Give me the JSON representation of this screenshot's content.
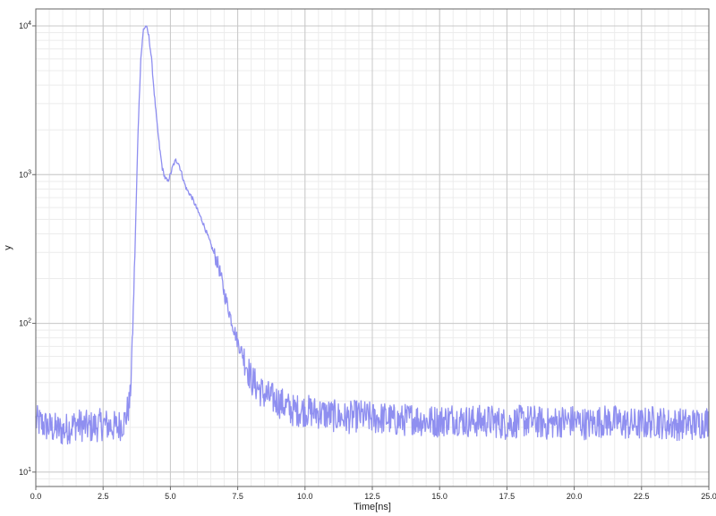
{
  "chart_data": {
    "type": "line",
    "title": "",
    "xlabel": "Time[ns]",
    "ylabel": "y",
    "xlim": [
      0,
      25
    ],
    "ylim": [
      8,
      13000
    ],
    "yscale": "log",
    "grid": true,
    "legend": "none",
    "x_ticks": [
      "0.0",
      "2.5",
      "5.0",
      "7.5",
      "10.0",
      "12.5",
      "15.0",
      "17.5",
      "20.0",
      "22.5",
      "25.0"
    ],
    "y_ticks": [
      {
        "base": "10",
        "exp": "1",
        "value": 10
      },
      {
        "base": "10",
        "exp": "2",
        "value": 100
      },
      {
        "base": "10",
        "exp": "3",
        "value": 1000
      },
      {
        "base": "10",
        "exp": "4",
        "value": 10000
      }
    ],
    "colors": {
      "series": "#8f8ff0",
      "grid_major": "#c8c8c8",
      "grid_minor": "#ececec",
      "frame": "#666666"
    },
    "series": [
      {
        "x": [
          0.0,
          0.5,
          1.0,
          1.5,
          2.0,
          2.5,
          3.0,
          3.3,
          3.5,
          3.6,
          3.7,
          3.8,
          3.9,
          4.0,
          4.1,
          4.2,
          4.3,
          4.4,
          4.5,
          4.6,
          4.7,
          4.8,
          4.9,
          5.0,
          5.1,
          5.2,
          5.3,
          5.4,
          5.5,
          5.6,
          5.8,
          6.0,
          6.2,
          6.5,
          6.8,
          7.0,
          7.3,
          7.5,
          7.8,
          8.0,
          8.3,
          8.5,
          9.0,
          9.5,
          10.0,
          10.5,
          11.0,
          11.5,
          12.0,
          12.5,
          13.0,
          13.5,
          14.0,
          14.5,
          15.0,
          15.5,
          16.0,
          16.5,
          17.0,
          17.5,
          18.0,
          18.5,
          19.0,
          19.5,
          20.0,
          20.5,
          21.0,
          21.5,
          22.0,
          22.5,
          23.0,
          23.5,
          24.0,
          24.5,
          25.0
        ],
        "values": [
          22,
          20,
          19,
          21,
          20,
          21,
          20,
          22,
          30,
          90,
          400,
          2000,
          6000,
          9500,
          10000,
          8500,
          6000,
          3500,
          2200,
          1500,
          1100,
          950,
          900,
          1000,
          1150,
          1250,
          1200,
          1050,
          900,
          800,
          700,
          580,
          480,
          340,
          240,
          160,
          100,
          75,
          55,
          42,
          36,
          33,
          30,
          26,
          26,
          25,
          24,
          23,
          24,
          23,
          23,
          22,
          23,
          22,
          22,
          23,
          22,
          22,
          22,
          21,
          22,
          22,
          21,
          22,
          22,
          21,
          22,
          22,
          21,
          21,
          22,
          21,
          21,
          21,
          22
        ]
      }
    ]
  }
}
